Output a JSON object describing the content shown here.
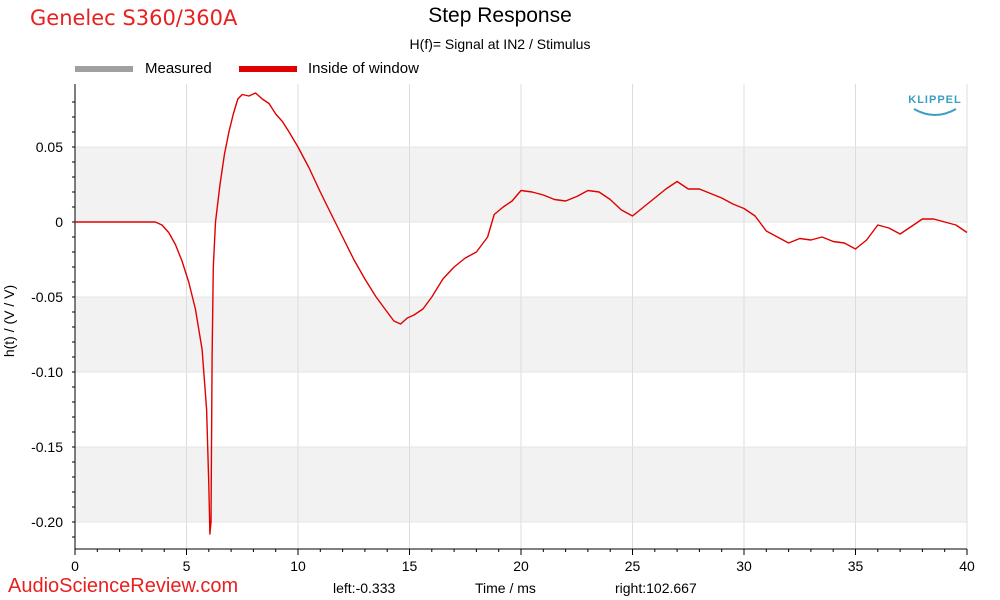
{
  "brand_label": "Genelec S360/360A",
  "watermark": "AudioScienceReview.com",
  "footer": {
    "left": "left:-0.333",
    "right": "right:102.667"
  },
  "colors": {
    "measured": "#a0a0a0",
    "window": "#e00000",
    "band": "#f2f2f2",
    "brand": "#e8201f",
    "logo": "#3a9fc1"
  },
  "logo_text": "KLIPPEL",
  "logo_icon": "klippel-logo-arc",
  "chart_data": {
    "type": "line",
    "title": "Step Response",
    "subtitle": "H(f)= Signal at IN2 / Stimulus",
    "xlabel": "Time / ms",
    "ylabel": "h(t) / (V / V)",
    "xlim": [
      0,
      40
    ],
    "ylim": [
      -0.215,
      0.09
    ],
    "xticks": [
      0,
      5,
      10,
      15,
      20,
      25,
      30,
      35,
      40
    ],
    "yticks": [
      0.05,
      0,
      -0.05,
      -0.1,
      -0.15,
      -0.2
    ],
    "ytick_labels": [
      "0.05",
      "0",
      "-0.05",
      "-0.10",
      "-0.15",
      "-0.20"
    ],
    "legend": [
      {
        "name": "Measured",
        "color": "#a0a0a0"
      },
      {
        "name": "Inside of window",
        "color": "#e00000"
      }
    ],
    "legend_position": "top-left",
    "grid": true,
    "series": [
      {
        "name": "Inside of window",
        "color": "#e00000",
        "x": [
          0,
          3.3,
          3.6,
          3.9,
          4.2,
          4.5,
          4.8,
          5.1,
          5.4,
          5.7,
          5.9,
          6.0,
          6.05,
          6.1,
          6.15,
          6.2,
          6.3,
          6.5,
          6.7,
          6.9,
          7.1,
          7.3,
          7.5,
          7.8,
          8.1,
          8.4,
          8.7,
          9.0,
          9.3,
          9.6,
          10.0,
          10.5,
          11.0,
          11.5,
          12.0,
          12.5,
          13.0,
          13.5,
          14.0,
          14.3,
          14.6,
          14.9,
          15.2,
          15.6,
          16.0,
          16.5,
          17.0,
          17.5,
          18.0,
          18.5,
          18.8,
          19.2,
          19.6,
          20.0,
          20.5,
          21.0,
          21.5,
          22.0,
          22.5,
          23.0,
          23.5,
          24.0,
          24.5,
          25.0,
          25.5,
          26.0,
          26.5,
          27.0,
          27.5,
          28.0,
          28.5,
          29.0,
          29.5,
          30.0,
          30.5,
          31.0,
          31.5,
          32.0,
          32.5,
          33.0,
          33.5,
          34.0,
          34.5,
          35.0,
          35.5,
          36.0,
          36.5,
          37.0,
          37.5,
          38.0,
          38.5,
          39.0,
          39.5,
          40.0
        ],
        "y": [
          0,
          0,
          0,
          -0.002,
          -0.007,
          -0.015,
          -0.026,
          -0.04,
          -0.058,
          -0.085,
          -0.125,
          -0.175,
          -0.208,
          -0.2,
          -0.09,
          -0.03,
          0.0,
          0.025,
          0.045,
          0.06,
          0.072,
          0.082,
          0.085,
          0.084,
          0.086,
          0.082,
          0.079,
          0.072,
          0.067,
          0.06,
          0.05,
          0.036,
          0.02,
          0.005,
          -0.01,
          -0.025,
          -0.038,
          -0.05,
          -0.06,
          -0.066,
          -0.068,
          -0.064,
          -0.062,
          -0.058,
          -0.05,
          -0.038,
          -0.03,
          -0.024,
          -0.02,
          -0.01,
          0.005,
          0.01,
          0.014,
          0.021,
          0.02,
          0.018,
          0.015,
          0.014,
          0.017,
          0.021,
          0.02,
          0.015,
          0.008,
          0.004,
          0.01,
          0.016,
          0.022,
          0.027,
          0.022,
          0.022,
          0.019,
          0.016,
          0.012,
          0.009,
          0.004,
          -0.006,
          -0.01,
          -0.014,
          -0.011,
          -0.012,
          -0.01,
          -0.013,
          -0.014,
          -0.018,
          -0.012,
          -0.002,
          -0.004,
          -0.008,
          -0.003,
          0.002,
          0.002,
          0.0,
          -0.002,
          -0.007
        ]
      }
    ]
  }
}
